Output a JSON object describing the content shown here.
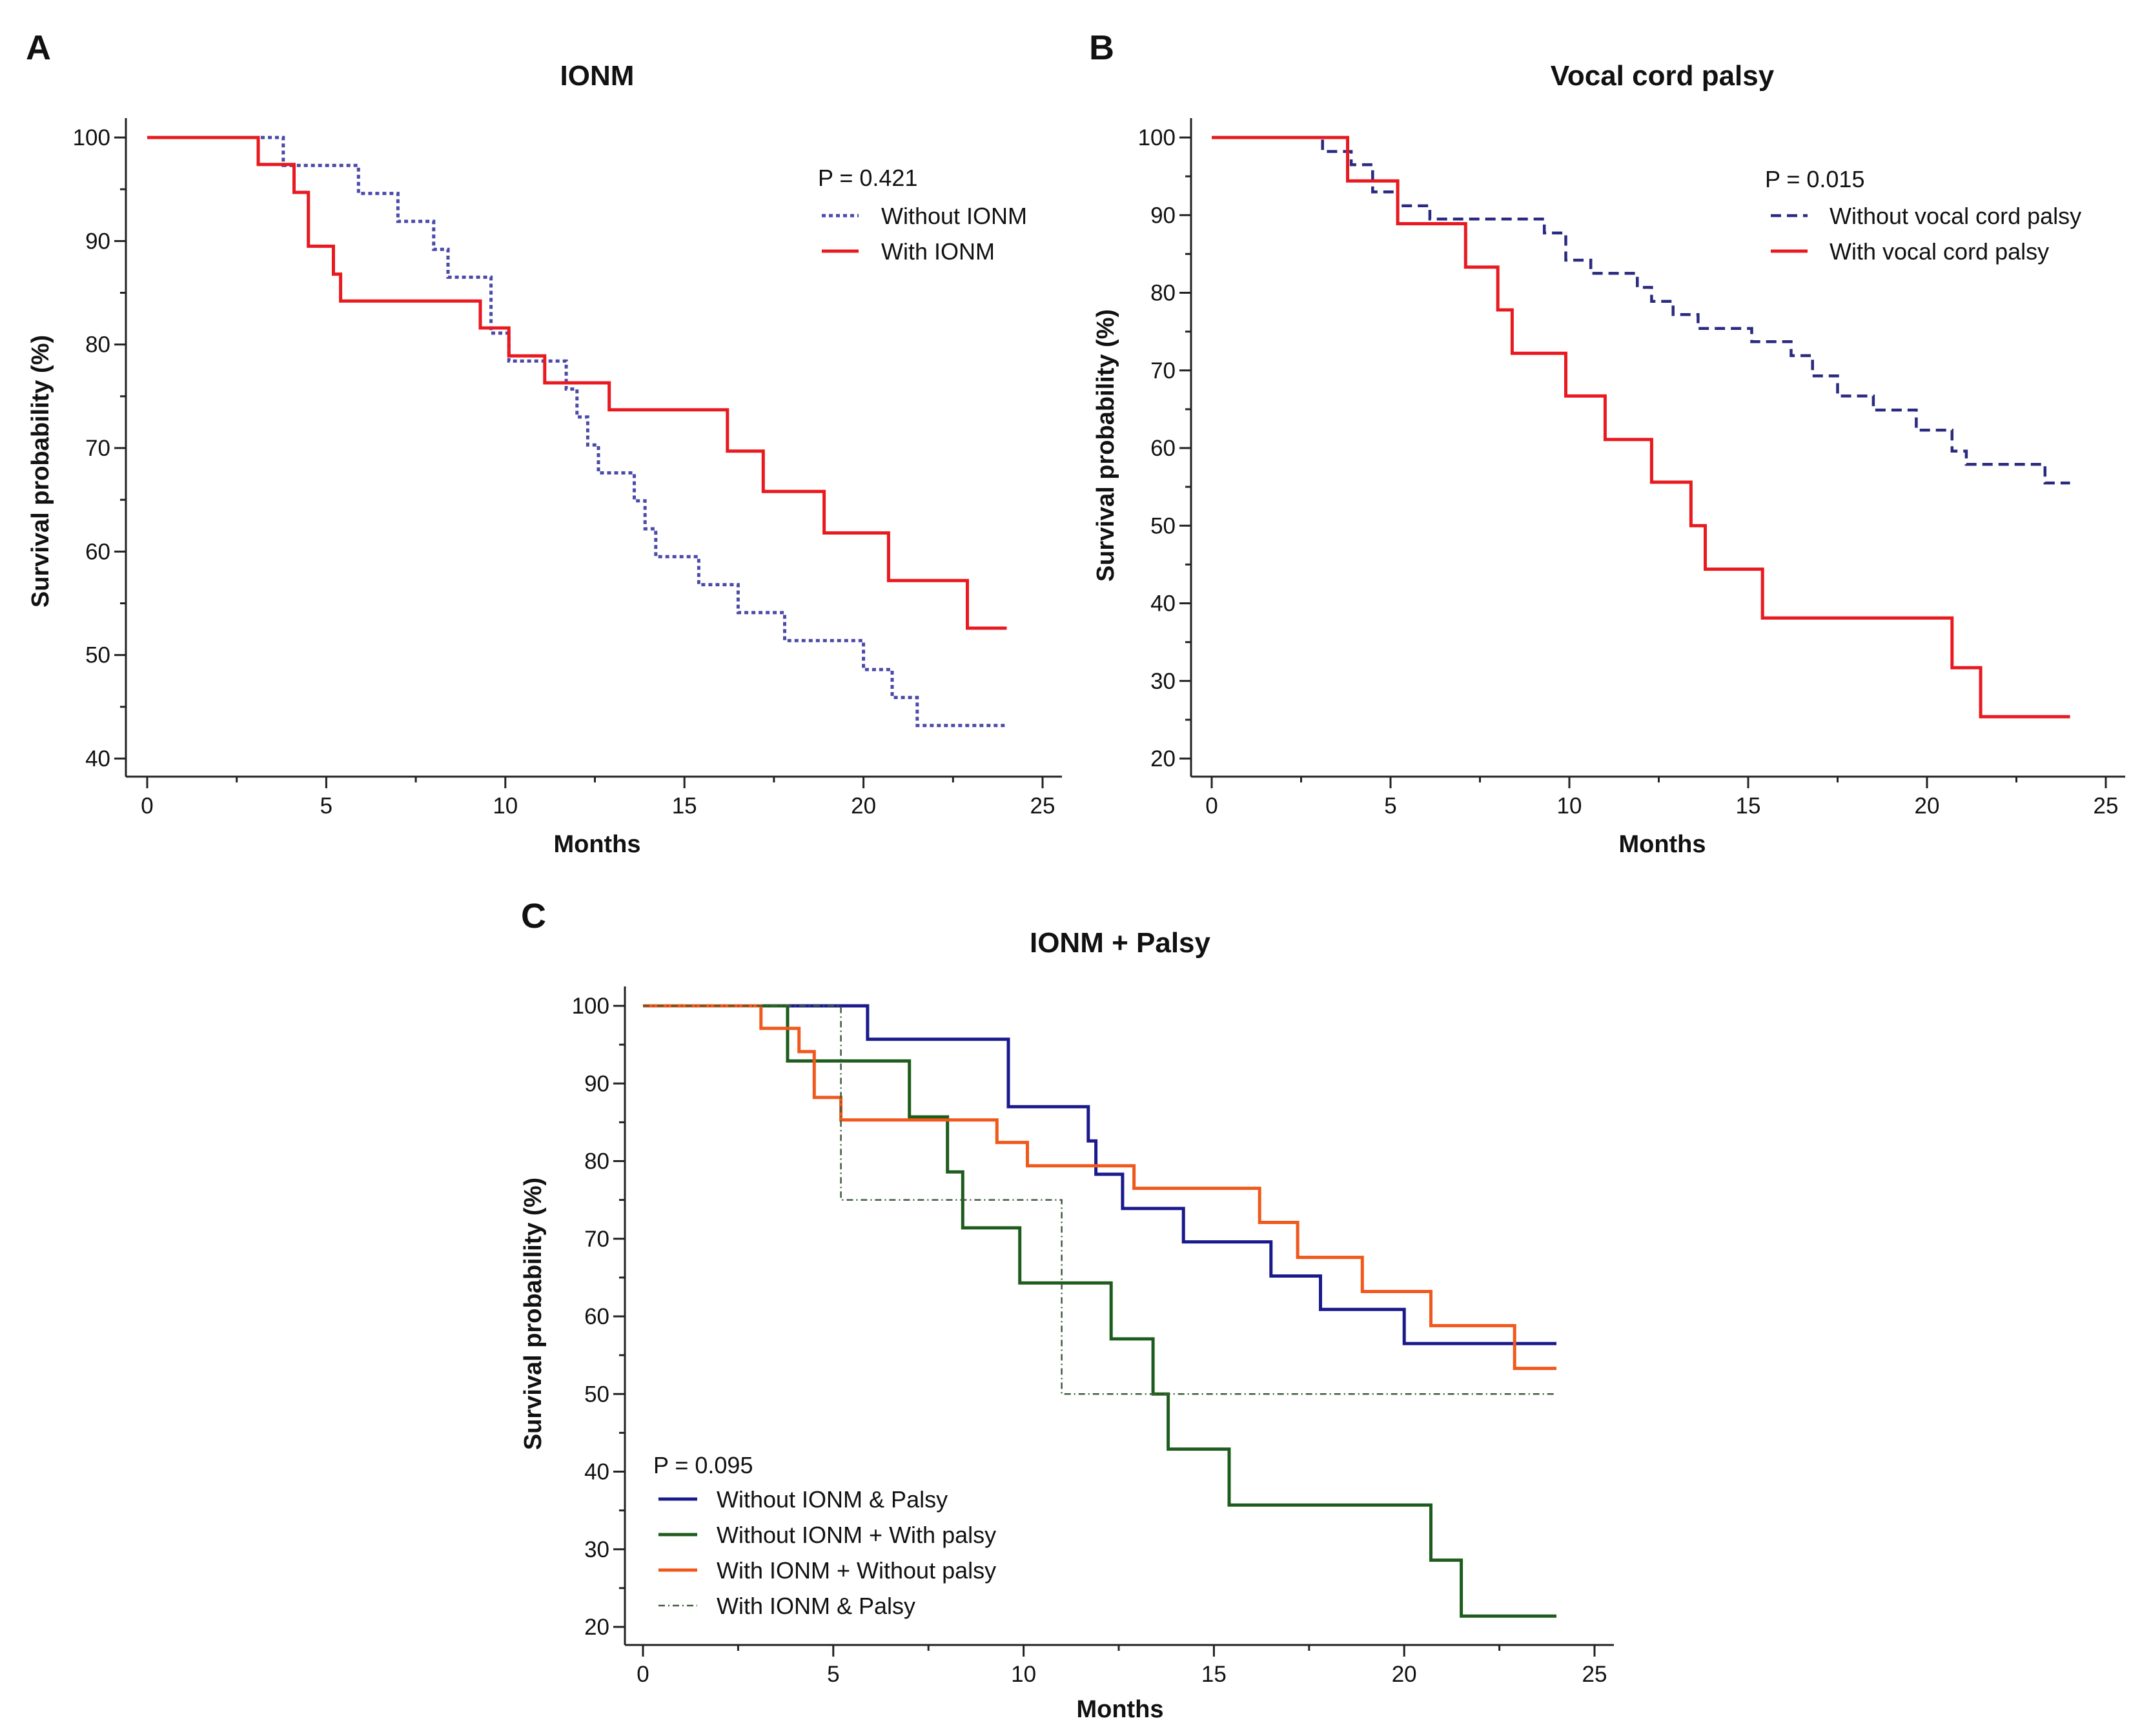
{
  "chart_data": [
    {
      "id": "A",
      "type": "line",
      "step": true,
      "title": "IONM",
      "xlabel": "Months",
      "ylabel": "Survival probability (%)",
      "xlim": [
        0,
        25
      ],
      "ylim": [
        40,
        100
      ],
      "xticks": [
        0,
        5,
        10,
        15,
        20,
        25
      ],
      "yticks": [
        40,
        50,
        60,
        70,
        80,
        90,
        100
      ],
      "legend_position": "top-right",
      "annotation": "P = 0.421",
      "series": [
        {
          "name": "Without IONM",
          "color": "#4a4aa8",
          "style": "dotted",
          "points": [
            [
              0,
              100
            ],
            [
              3.8,
              100
            ],
            [
              3.8,
              97.3
            ],
            [
              5.9,
              97.3
            ],
            [
              5.9,
              94.6
            ],
            [
              7,
              94.6
            ],
            [
              7,
              91.9
            ],
            [
              8,
              91.9
            ],
            [
              8,
              89.2
            ],
            [
              8.4,
              89.2
            ],
            [
              8.4,
              86.5
            ],
            [
              9.6,
              86.5
            ],
            [
              9.6,
              81.1
            ],
            [
              10.1,
              81.1
            ],
            [
              10.1,
              78.4
            ],
            [
              11.7,
              78.4
            ],
            [
              11.7,
              75.7
            ],
            [
              12,
              75.7
            ],
            [
              12,
              73
            ],
            [
              12.3,
              73
            ],
            [
              12.3,
              70.3
            ],
            [
              12.6,
              70.3
            ],
            [
              12.6,
              67.6
            ],
            [
              13.6,
              67.6
            ],
            [
              13.6,
              64.9
            ],
            [
              13.9,
              64.9
            ],
            [
              13.9,
              62.2
            ],
            [
              14.2,
              62.2
            ],
            [
              14.2,
              59.5
            ],
            [
              15.4,
              59.5
            ],
            [
              15.4,
              56.8
            ],
            [
              16.5,
              56.8
            ],
            [
              16.5,
              54.1
            ],
            [
              17.8,
              54.1
            ],
            [
              17.8,
              51.4
            ],
            [
              20,
              51.4
            ],
            [
              20,
              48.6
            ],
            [
              20.8,
              48.6
            ],
            [
              20.8,
              45.9
            ],
            [
              21.5,
              45.9
            ],
            [
              21.5,
              43.2
            ],
            [
              24,
              43.2
            ]
          ]
        },
        {
          "name": "With IONM",
          "color": "#e8191f",
          "style": "solid",
          "points": [
            [
              0,
              100
            ],
            [
              3.1,
              100
            ],
            [
              3.1,
              97.4
            ],
            [
              4.1,
              97.4
            ],
            [
              4.1,
              94.7
            ],
            [
              4.5,
              94.7
            ],
            [
              4.5,
              89.5
            ],
            [
              5.2,
              89.5
            ],
            [
              5.2,
              86.8
            ],
            [
              5.4,
              86.8
            ],
            [
              5.4,
              84.2
            ],
            [
              9.3,
              84.2
            ],
            [
              9.3,
              81.6
            ],
            [
              10.1,
              81.6
            ],
            [
              10.1,
              78.9
            ],
            [
              11.1,
              78.9
            ],
            [
              11.1,
              76.3
            ],
            [
              12.9,
              76.3
            ],
            [
              12.9,
              73.7
            ],
            [
              16.2,
              73.7
            ],
            [
              16.2,
              69.7
            ],
            [
              17.2,
              69.7
            ],
            [
              17.2,
              65.8
            ],
            [
              18.9,
              65.8
            ],
            [
              18.9,
              61.8
            ],
            [
              20.7,
              61.8
            ],
            [
              20.7,
              57.2
            ],
            [
              22.9,
              57.2
            ],
            [
              22.9,
              52.6
            ],
            [
              24,
              52.6
            ]
          ]
        }
      ]
    },
    {
      "id": "B",
      "type": "line",
      "step": true,
      "title": "Vocal cord palsy",
      "xlabel": "Months",
      "ylabel": "Survival probability (%)",
      "xlim": [
        0,
        25
      ],
      "ylim": [
        20,
        100
      ],
      "xticks": [
        0,
        5,
        10,
        15,
        20,
        25
      ],
      "yticks": [
        20,
        30,
        40,
        50,
        60,
        70,
        80,
        90,
        100
      ],
      "legend_position": "top-right",
      "annotation": "P = 0.015",
      "series": [
        {
          "name": "Without vocal cord palsy",
          "color": "#2a2a80",
          "style": "dashed",
          "points": [
            [
              0,
              100
            ],
            [
              3.1,
              100
            ],
            [
              3.1,
              98.2
            ],
            [
              3.9,
              98.2
            ],
            [
              3.9,
              96.5
            ],
            [
              4.5,
              96.5
            ],
            [
              4.5,
              93
            ],
            [
              5.2,
              93
            ],
            [
              5.2,
              91.2
            ],
            [
              6.1,
              91.2
            ],
            [
              6.1,
              89.5
            ],
            [
              9.3,
              89.5
            ],
            [
              9.3,
              87.7
            ],
            [
              9.9,
              87.7
            ],
            [
              9.9,
              84.2
            ],
            [
              10.6,
              84.2
            ],
            [
              10.6,
              82.5
            ],
            [
              11.9,
              82.5
            ],
            [
              11.9,
              80.7
            ],
            [
              12.3,
              80.7
            ],
            [
              12.3,
              78.9
            ],
            [
              12.9,
              78.9
            ],
            [
              12.9,
              77.2
            ],
            [
              13.6,
              77.2
            ],
            [
              13.6,
              75.4
            ],
            [
              15.1,
              75.4
            ],
            [
              15.1,
              73.7
            ],
            [
              16.2,
              73.7
            ],
            [
              16.2,
              71.9
            ],
            [
              16.8,
              71.9
            ],
            [
              16.8,
              69.3
            ],
            [
              17.5,
              69.3
            ],
            [
              17.5,
              66.7
            ],
            [
              18.5,
              66.7
            ],
            [
              18.5,
              64.9
            ],
            [
              19.7,
              64.9
            ],
            [
              19.7,
              62.3
            ],
            [
              20.7,
              62.3
            ],
            [
              20.7,
              59.6
            ],
            [
              21.1,
              59.6
            ],
            [
              21.1,
              57.9
            ],
            [
              23.3,
              57.9
            ],
            [
              23.3,
              55.5
            ],
            [
              24,
              55.5
            ]
          ]
        },
        {
          "name": "With vocal cord palsy",
          "color": "#e8191f",
          "style": "solid",
          "points": [
            [
              0,
              100
            ],
            [
              3.8,
              100
            ],
            [
              3.8,
              94.4
            ],
            [
              5.2,
              94.4
            ],
            [
              5.2,
              88.9
            ],
            [
              7.1,
              88.9
            ],
            [
              7.1,
              83.3
            ],
            [
              8,
              83.3
            ],
            [
              8,
              77.8
            ],
            [
              8.4,
              77.8
            ],
            [
              8.4,
              72.2
            ],
            [
              9.9,
              72.2
            ],
            [
              9.9,
              66.7
            ],
            [
              11,
              66.7
            ],
            [
              11,
              61.1
            ],
            [
              12.3,
              61.1
            ],
            [
              12.3,
              55.6
            ],
            [
              13.4,
              55.6
            ],
            [
              13.4,
              50
            ],
            [
              13.8,
              50
            ],
            [
              13.8,
              44.4
            ],
            [
              15.4,
              44.4
            ],
            [
              15.4,
              38.1
            ],
            [
              20.7,
              38.1
            ],
            [
              20.7,
              31.7
            ],
            [
              21.5,
              31.7
            ],
            [
              21.5,
              25.4
            ],
            [
              24,
              25.4
            ]
          ]
        }
      ]
    },
    {
      "id": "C",
      "type": "line",
      "step": true,
      "title": "IONM + Palsy",
      "xlabel": "Months",
      "ylabel": "Survival probability (%)",
      "xlim": [
        0,
        25
      ],
      "ylim": [
        20,
        100
      ],
      "xticks": [
        0,
        5,
        10,
        15,
        20,
        25
      ],
      "yticks": [
        20,
        30,
        40,
        50,
        60,
        70,
        80,
        90,
        100
      ],
      "legend_position": "bottom-left",
      "annotation": "P = 0.095",
      "series": [
        {
          "name": "Without IONM & Palsy",
          "color": "#1a1a8c",
          "style": "solid",
          "points": [
            [
              0,
              100
            ],
            [
              5.9,
              100
            ],
            [
              5.9,
              95.7
            ],
            [
              9.6,
              95.7
            ],
            [
              9.6,
              87
            ],
            [
              11.7,
              87
            ],
            [
              11.7,
              82.6
            ],
            [
              11.9,
              82.6
            ],
            [
              11.9,
              78.3
            ],
            [
              12.6,
              78.3
            ],
            [
              12.6,
              73.9
            ],
            [
              14.2,
              73.9
            ],
            [
              14.2,
              69.6
            ],
            [
              16.5,
              69.6
            ],
            [
              16.5,
              65.2
            ],
            [
              17.8,
              65.2
            ],
            [
              17.8,
              60.9
            ],
            [
              20,
              60.9
            ],
            [
              20,
              56.5
            ],
            [
              24,
              56.5
            ]
          ]
        },
        {
          "name": "Without IONM + With palsy",
          "color": "#1e5c1e",
          "style": "solid",
          "points": [
            [
              0,
              100
            ],
            [
              3.8,
              100
            ],
            [
              3.8,
              92.9
            ],
            [
              7,
              92.9
            ],
            [
              7,
              85.7
            ],
            [
              8,
              85.7
            ],
            [
              8,
              78.6
            ],
            [
              8.4,
              78.6
            ],
            [
              8.4,
              71.4
            ],
            [
              9.9,
              71.4
            ],
            [
              9.9,
              64.3
            ],
            [
              12.3,
              64.3
            ],
            [
              12.3,
              57.1
            ],
            [
              13.4,
              57.1
            ],
            [
              13.4,
              50
            ],
            [
              13.8,
              50
            ],
            [
              13.8,
              42.9
            ],
            [
              15.4,
              42.9
            ],
            [
              15.4,
              35.7
            ],
            [
              20.7,
              35.7
            ],
            [
              20.7,
              28.6
            ],
            [
              21.5,
              28.6
            ],
            [
              21.5,
              21.4
            ],
            [
              24,
              21.4
            ]
          ]
        },
        {
          "name": "With IONM + Without palsy",
          "color": "#f0581c",
          "style": "solid",
          "points": [
            [
              0,
              100
            ],
            [
              3.1,
              100
            ],
            [
              3.1,
              97.1
            ],
            [
              4.1,
              97.1
            ],
            [
              4.1,
              94.1
            ],
            [
              4.5,
              94.1
            ],
            [
              4.5,
              88.2
            ],
            [
              5.2,
              88.2
            ],
            [
              5.2,
              85.3
            ],
            [
              9.3,
              85.3
            ],
            [
              9.3,
              82.4
            ],
            [
              10.1,
              82.4
            ],
            [
              10.1,
              79.4
            ],
            [
              12.9,
              79.4
            ],
            [
              12.9,
              76.5
            ],
            [
              16.2,
              76.5
            ],
            [
              16.2,
              72.1
            ],
            [
              17.2,
              72.1
            ],
            [
              17.2,
              67.6
            ],
            [
              18.9,
              67.6
            ],
            [
              18.9,
              63.2
            ],
            [
              20.7,
              63.2
            ],
            [
              20.7,
              58.8
            ],
            [
              22.9,
              58.8
            ],
            [
              22.9,
              53.3
            ],
            [
              24,
              53.3
            ]
          ]
        },
        {
          "name": "With IONM & Palsy",
          "color": "#3c5c3c",
          "style": "dashdot",
          "points": [
            [
              0,
              100
            ],
            [
              5.2,
              100
            ],
            [
              5.2,
              75
            ],
            [
              11,
              75
            ],
            [
              11,
              50
            ],
            [
              24,
              50
            ]
          ]
        }
      ]
    }
  ]
}
